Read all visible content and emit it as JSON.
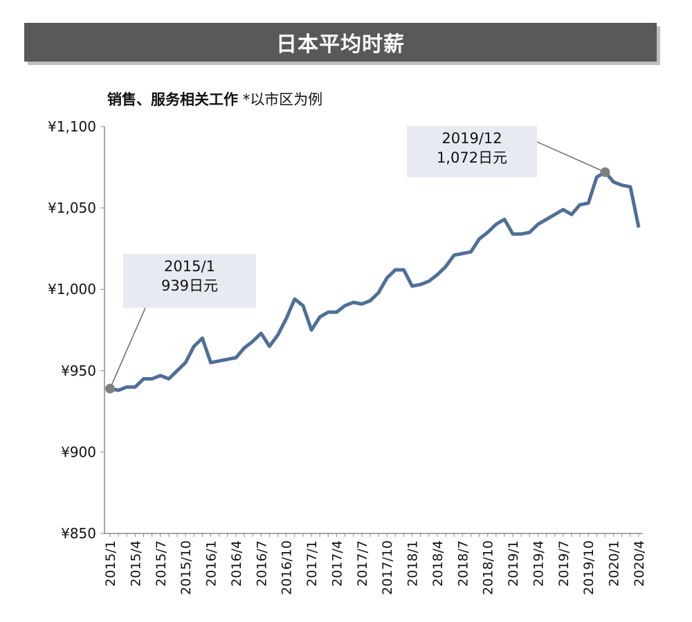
{
  "title": "日本平均时薪",
  "subtitle": {
    "main": "销售、服务相关工作",
    "note": "*以市区为例"
  },
  "chart_data": {
    "type": "line",
    "title": "",
    "xlabel": "",
    "ylabel": "",
    "ylim": [
      850,
      1100
    ],
    "yticks": [
      850,
      900,
      950,
      1000,
      1050,
      1100
    ],
    "ytick_labels": [
      "¥850",
      "¥900",
      "¥950",
      "¥1,000",
      "¥1,050",
      "¥1,100"
    ],
    "grid": false,
    "x_start": "2015/1",
    "x_end": "2020/4",
    "xtick_labels": [
      "2015/1",
      "2015/4",
      "2015/7",
      "2015/10",
      "2016/1",
      "2016/4",
      "2016/7",
      "2016/10",
      "2017/1",
      "2017/4",
      "2017/7",
      "2017/10",
      "2018/1",
      "2018/4",
      "2018/7",
      "2018/10",
      "2019/1",
      "2019/4",
      "2019/7",
      "2019/10",
      "2020/1",
      "2020/4"
    ],
    "series": [
      {
        "color": "#4e6f96",
        "values": [
          939,
          938,
          940,
          940,
          945,
          945,
          947,
          945,
          950,
          955,
          965,
          970,
          955,
          956,
          957,
          958,
          964,
          968,
          973,
          965,
          972,
          982,
          994,
          990,
          975,
          983,
          986,
          986,
          990,
          992,
          991,
          993,
          998,
          1007,
          1012,
          1012,
          1002,
          1003,
          1005,
          1009,
          1014,
          1021,
          1022,
          1023,
          1031,
          1035,
          1040,
          1043,
          1034,
          1034,
          1035,
          1040,
          1043,
          1046,
          1049,
          1046,
          1052,
          1053,
          1069,
          1072,
          1066,
          1064,
          1063,
          1038
        ]
      }
    ],
    "annotations": [
      {
        "date": "2015/1",
        "line1": "2015/1",
        "line2": "939日元",
        "index": 0
      },
      {
        "date": "2019/12",
        "line1": "2019/12",
        "line2": "1,072日元",
        "index": 59
      }
    ],
    "marker_color": "#808080"
  }
}
